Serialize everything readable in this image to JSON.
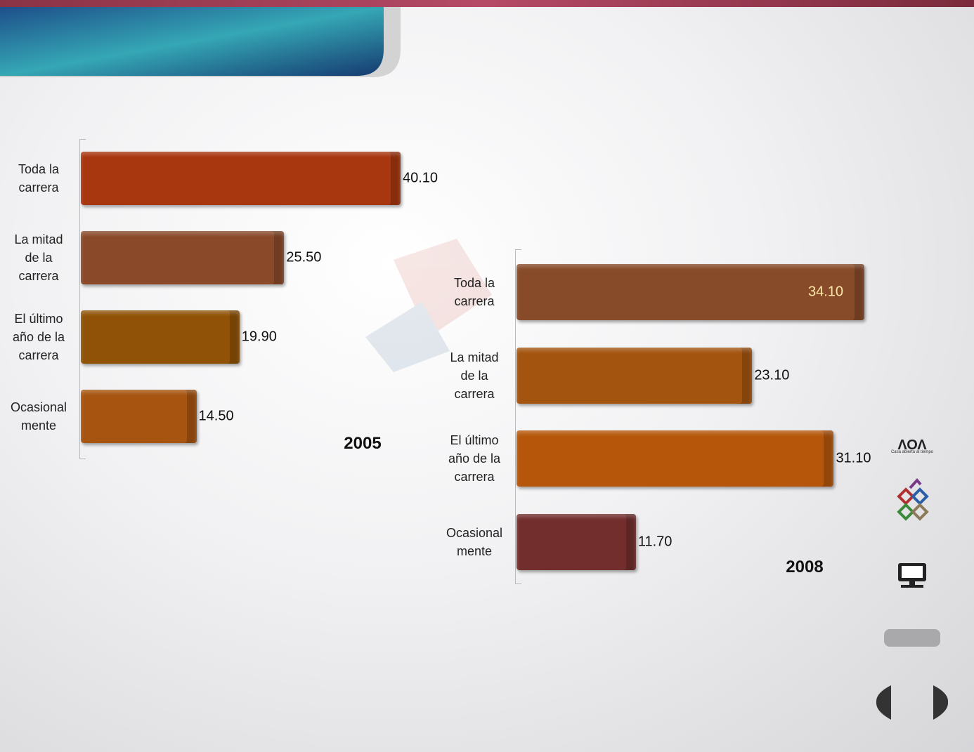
{
  "chart_data": [
    {
      "type": "bar",
      "orientation": "horizontal",
      "title": "2005",
      "categories": [
        "Toda la carrera",
        "La mitad de la carrera",
        "El último año de la carrera",
        "Ocasional mente"
      ],
      "values": [
        40.1,
        25.5,
        19.9,
        14.5
      ],
      "value_labels": [
        "40.10",
        "25.50",
        "19.90",
        "14.50"
      ],
      "colors": [
        "#a8360f",
        "#8a4a2a",
        "#8f5206",
        "#a6540f"
      ]
    },
    {
      "type": "bar",
      "orientation": "horizontal",
      "title": "2008",
      "categories": [
        "Toda la carrera",
        "La mitad de la carrera",
        "El último año de la carrera",
        "Ocasional mente"
      ],
      "values": [
        34.1,
        23.1,
        31.1,
        11.7
      ],
      "value_labels": [
        "34.10",
        "23.10",
        "31.10",
        "11.70"
      ],
      "colors": [
        "#874b29",
        "#a3540f",
        "#b5560a",
        "#722e2c"
      ]
    }
  ],
  "logo": {
    "caption": "Casa abierta al tiempo"
  }
}
